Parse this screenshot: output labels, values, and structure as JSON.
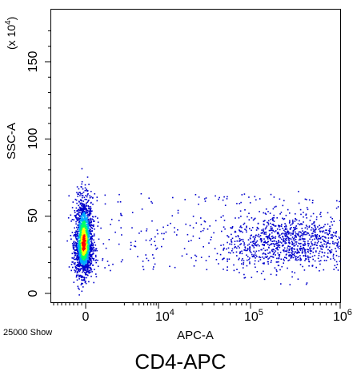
{
  "caption": "CD4-APC",
  "event_count_label": "25000 Show",
  "chart_data": {
    "type": "scatter",
    "subtype": "flow-cytometry-density-dot-plot",
    "xlabel": "APC-A",
    "ylabel": "SSC-A",
    "y_multiplier_label": "(x 10^4)",
    "x_scale": "biexponential",
    "x_ticks": [
      "0",
      "10^4",
      "10^5",
      "10^6"
    ],
    "y_ticks": [
      "0",
      "50",
      "100",
      "150"
    ],
    "ylim": [
      0,
      180
    ],
    "y_units": "x10^4",
    "grid": false,
    "events": 25000,
    "colormap": [
      "#0000cc",
      "#00aaff",
      "#00ff66",
      "#ffff00",
      "#ff0000"
    ],
    "populations": [
      {
        "name": "",
        "x_center": 0,
        "y_center": 32,
        "x_spread": 0.06,
        "y_spread": 12,
        "fraction": 0.62,
        "peak_density": "red"
      },
      {
        "name": "",
        "x_center_log": 5.4,
        "y_center": 32,
        "x_spread_log": 0.35,
        "y_spread": 9,
        "fraction": 0.3,
        "peak_density": "blue"
      },
      {
        "name": "",
        "x_range_log": [
          3.0,
          6.0
        ],
        "y_range": [
          15,
          65
        ],
        "fraction": 0.08,
        "peak_density": "blue"
      }
    ]
  }
}
